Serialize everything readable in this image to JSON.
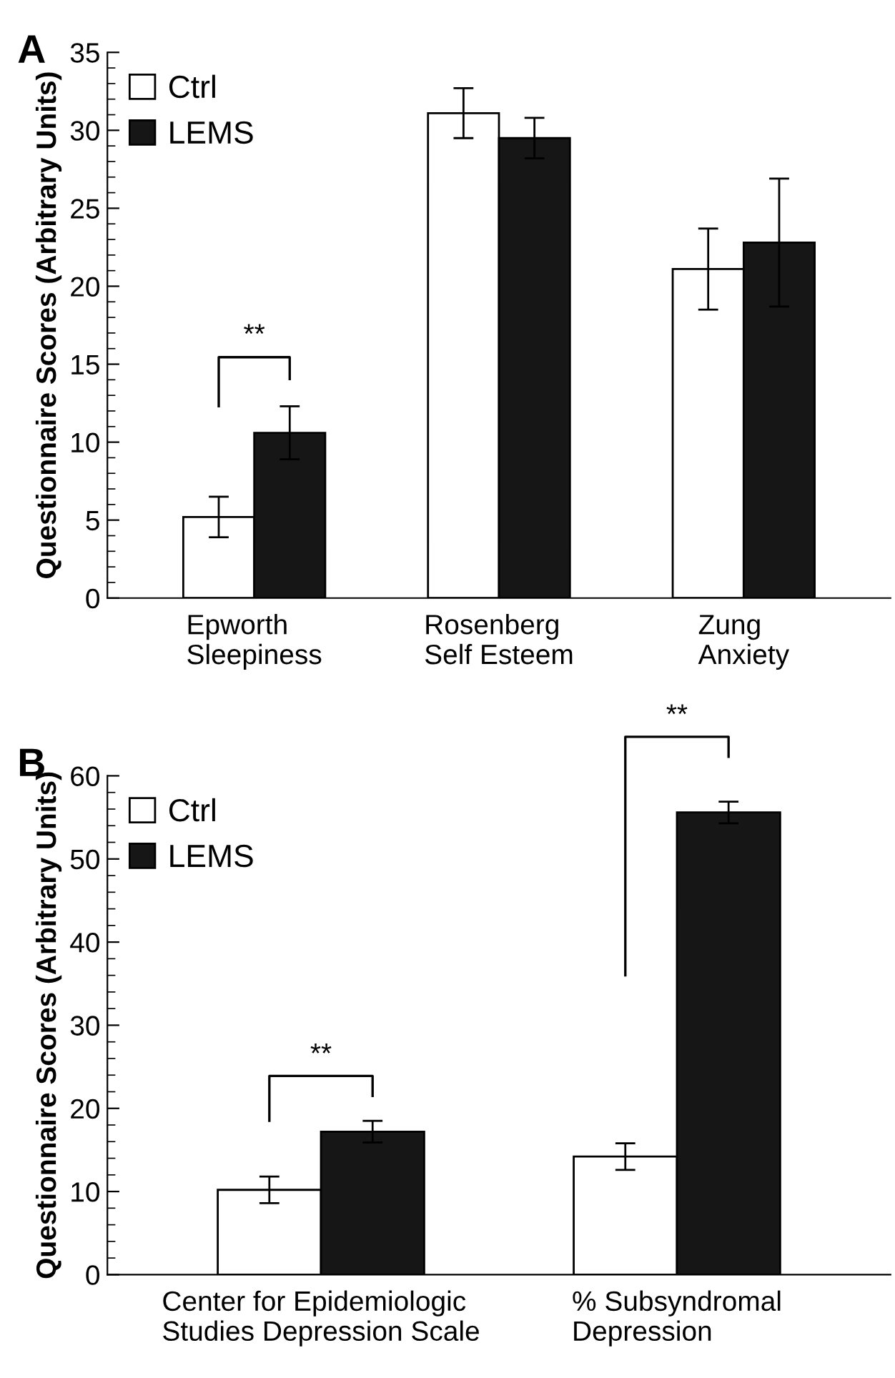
{
  "chart_data": [
    {
      "type": "bar",
      "title": "A",
      "ylabel": "Questionnaire Scores (Arbitrary Units)",
      "categories": [
        "Epworth\nSleepiness",
        "Rosenberg\nSelf Esteem",
        "Zung\nAnxiety"
      ],
      "series": [
        {
          "name": "Ctrl",
          "color": "#ffffff",
          "values": [
            5.2,
            31.1,
            21.1
          ],
          "errors": [
            1.3,
            1.6,
            2.6
          ]
        },
        {
          "name": "LEMS",
          "color": "#161616",
          "values": [
            10.6,
            29.5,
            22.8
          ],
          "errors": [
            1.7,
            1.3,
            4.1
          ]
        }
      ],
      "ylim": [
        0,
        35
      ],
      "yticks": [
        0,
        5,
        10,
        15,
        20,
        25,
        30,
        35
      ],
      "legend": "top left",
      "annotations": [
        "**"
      ]
    },
    {
      "type": "bar",
      "title": "B",
      "ylabel": "Questionnaire Scores (Arbitrary Units)",
      "categories": [
        "Center for Epidemiologic\nStudies Depression Scale",
        "% Subsyndromal\nDepression"
      ],
      "series": [
        {
          "name": "Ctrl",
          "color": "#ffffff",
          "values": [
            10.2,
            14.2
          ],
          "errors": [
            1.6,
            1.6
          ]
        },
        {
          "name": "LEMS",
          "color": "#161616",
          "values": [
            17.2,
            55.6
          ],
          "errors": [
            1.3,
            1.3
          ]
        }
      ],
      "ylim": [
        0,
        60
      ],
      "yticks": [
        0,
        10,
        20,
        30,
        40,
        50,
        60
      ],
      "legend": "top left",
      "annotations": [
        "**",
        "**"
      ]
    }
  ]
}
